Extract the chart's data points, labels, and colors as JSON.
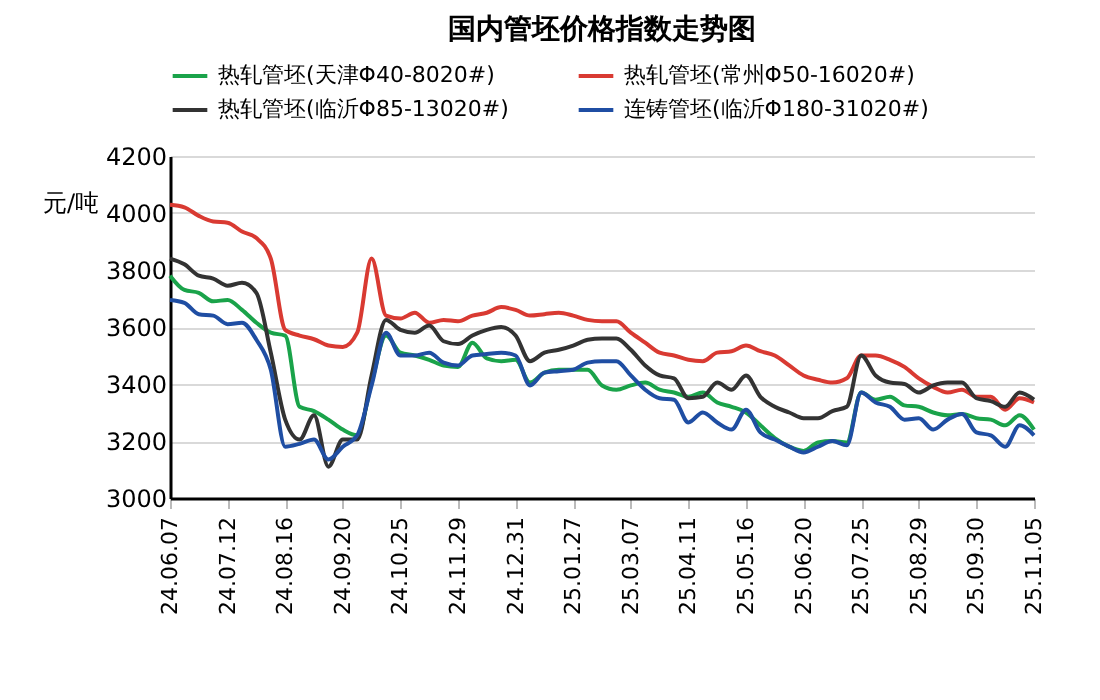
{
  "chart_data": {
    "type": "line",
    "title": "国内管坯价格指数走势图",
    "ylabel": "元/吨",
    "categories": [
      "24.06.07",
      null,
      null,
      null,
      "24.07.12",
      null,
      null,
      null,
      "24.08.16",
      null,
      null,
      null,
      "24.09.20",
      null,
      null,
      null,
      "24.10.25",
      null,
      null,
      null,
      "24.11.29",
      null,
      null,
      null,
      "24.12.31",
      null,
      null,
      null,
      "25.01.27",
      null,
      null,
      null,
      "25.03.07",
      null,
      null,
      null,
      "25.04.11",
      null,
      null,
      null,
      "25.05.16",
      null,
      null,
      null,
      "25.06.20",
      null,
      null,
      null,
      "25.07.25",
      null,
      null,
      null,
      "25.08.29",
      null,
      null,
      null,
      "25.09.30",
      null,
      null,
      null,
      "25.11.05"
    ],
    "series": [
      {
        "name": "热轧管坯(天津Φ40-8020#)",
        "color": "#1aa34a",
        "values": [
          3780,
          3730,
          3720,
          3690,
          3695,
          3660,
          3615,
          3580,
          3570,
          3320,
          3305,
          3275,
          3240,
          3220,
          3405,
          3570,
          3510,
          3500,
          3485,
          3465,
          3460,
          3545,
          3490,
          3480,
          3485,
          3405,
          3440,
          3450,
          3450,
          3450,
          3395,
          3380,
          3395,
          3405,
          3380,
          3370,
          3355,
          3370,
          3335,
          3320,
          3300,
          3255,
          3210,
          3180,
          3165,
          3195,
          3200,
          3195,
          3370,
          3345,
          3355,
          3325,
          3320,
          3300,
          3290,
          3295,
          3280,
          3275,
          3255,
          3290,
          3240
        ]
      },
      {
        "name": "热轧管坯(常州Φ50-16020#)",
        "color": "#d93a32",
        "values": [
          4029,
          4020,
          3990,
          3970,
          3966,
          3935,
          3912,
          3840,
          3590,
          3570,
          3557,
          3535,
          3530,
          3580,
          3840,
          3640,
          3630,
          3650,
          3615,
          3625,
          3620,
          3640,
          3650,
          3670,
          3660,
          3640,
          3645,
          3650,
          3640,
          3625,
          3620,
          3620,
          3580,
          3545,
          3510,
          3500,
          3485,
          3480,
          3510,
          3515,
          3535,
          3515,
          3500,
          3465,
          3430,
          3415,
          3405,
          3420,
          3500,
          3500,
          3485,
          3460,
          3420,
          3390,
          3370,
          3380,
          3355,
          3355,
          3310,
          3350,
          3335
        ]
      },
      {
        "name": "热轧管坯(临沂Φ85-13020#)",
        "color": "#333333",
        "values": [
          3840,
          3820,
          3780,
          3770,
          3745,
          3755,
          3720,
          3510,
          3275,
          3205,
          3290,
          3110,
          3205,
          3205,
          3430,
          3625,
          3590,
          3580,
          3605,
          3550,
          3540,
          3570,
          3590,
          3600,
          3570,
          3480,
          3510,
          3520,
          3535,
          3555,
          3560,
          3560,
          3520,
          3465,
          3430,
          3420,
          3350,
          3355,
          3405,
          3380,
          3430,
          3355,
          3320,
          3300,
          3280,
          3280,
          3305,
          3320,
          3500,
          3430,
          3405,
          3400,
          3370,
          3395,
          3405,
          3405,
          3350,
          3340,
          3320,
          3370,
          3345
        ]
      },
      {
        "name": "连铸管坯(临沂Φ180-31020#)",
        "color": "#1f4ea3",
        "values": [
          3695,
          3685,
          3645,
          3640,
          3610,
          3615,
          3555,
          3450,
          3180,
          3190,
          3205,
          3135,
          3180,
          3220,
          3395,
          3580,
          3500,
          3500,
          3510,
          3475,
          3465,
          3500,
          3505,
          3510,
          3500,
          3395,
          3440,
          3445,
          3450,
          3475,
          3480,
          3480,
          3430,
          3380,
          3350,
          3345,
          3265,
          3300,
          3265,
          3240,
          3310,
          3230,
          3205,
          3180,
          3160,
          3180,
          3200,
          3185,
          3370,
          3335,
          3320,
          3275,
          3280,
          3240,
          3275,
          3295,
          3230,
          3220,
          3180,
          3255,
          3220
        ]
      }
    ],
    "ylim": [
      3000,
      4200
    ],
    "yticks": [
      3000,
      3200,
      3400,
      3600,
      3800,
      4000,
      4200
    ],
    "grid": "y",
    "legend": "top",
    "marker": "none",
    "line_style": "solid"
  }
}
